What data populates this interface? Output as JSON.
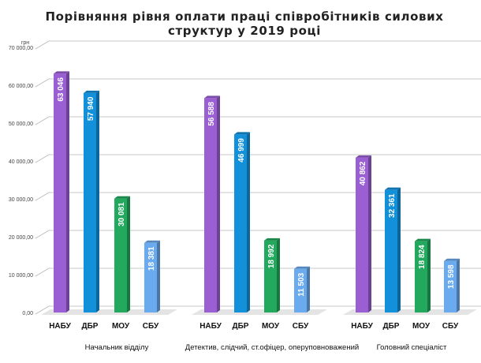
{
  "chart_data": {
    "type": "bar",
    "title": "Порівняння рівня оплати праці співробітників силових структур у 2019 році",
    "title_lines": [
      "Порівняння рівня оплати праці співробітників силових",
      "структур у 2019 році"
    ],
    "ylabel": "грн",
    "ylim": [
      0,
      70000
    ],
    "yticks": [
      "0,00",
      "10 000,00",
      "20 000,00",
      "30 000,00",
      "40 000,00",
      "50 000,00",
      "60 000,00",
      "70 000,00"
    ],
    "grid": true,
    "groups": [
      "Начальник відділу",
      "Детектив, слідчий, ст.офіцер, оперуповноважений",
      "Головний спеціаліст"
    ],
    "categories": [
      "НАБУ",
      "ДБР",
      "МОУ",
      "СБУ"
    ],
    "series": [
      {
        "group": "Начальник відділу",
        "values": [
          63046,
          57940,
          30081,
          18381
        ],
        "labels": [
          "63 046",
          "57 940",
          "30 081",
          "18 381"
        ]
      },
      {
        "group": "Детектив, слідчий, ст.офіцер, оперуповноважений",
        "values": [
          56588,
          46999,
          18992,
          11503
        ],
        "labels": [
          "56 588",
          "46 999",
          "18 992",
          "11 503"
        ]
      },
      {
        "group": "Головний спеціаліст",
        "values": [
          40862,
          32361,
          18824,
          13598
        ],
        "labels": [
          "40 862",
          "32 361",
          "18 824",
          "13 598"
        ]
      }
    ],
    "colors": [
      "#9b5fd4",
      "#1290da",
      "#22a95e",
      "#6aaaee"
    ]
  }
}
